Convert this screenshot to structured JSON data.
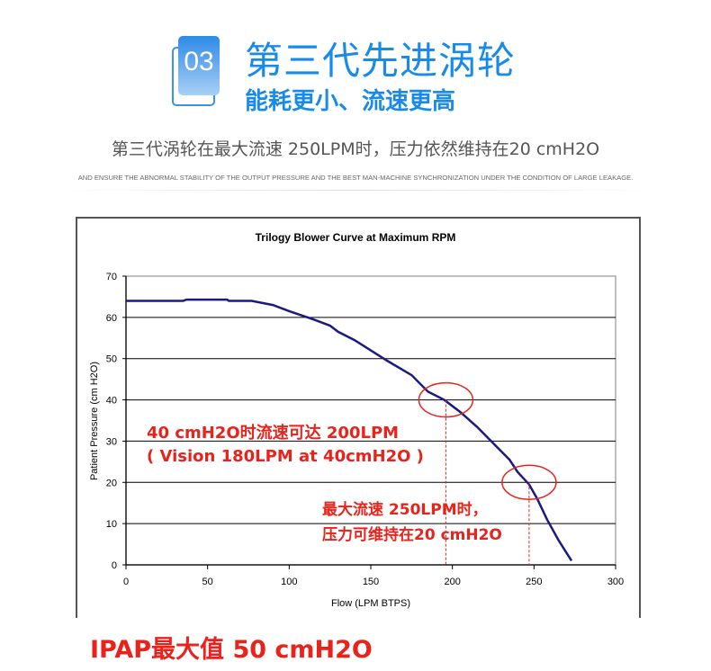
{
  "header": {
    "badge_number": "03",
    "title": "第三代先进涡轮",
    "subtitle": "能耗更小、流速更高",
    "description": "第三代涡轮在最大流速 250LPM时，压力依然维持在20 cmH2O",
    "english_caption": "AND ENSURE THE ABNORMAL STABILITY OF THE OUTPUT PRESSURE AND THE BEST MAN-MACHINE SYNCHRONIZATION UNDER THE CONDITION OF LARGE LEAKAGE."
  },
  "chart_data": {
    "type": "line",
    "title": "Trilogy Blower Curve at Maximum RPM",
    "xlabel": "Flow (LPM BTPS)",
    "ylabel": "Patient Pressure (cm H2O)",
    "xlim": [
      0,
      300
    ],
    "ylim": [
      0,
      70
    ],
    "xticks": [
      "0",
      "50",
      "100",
      "150",
      "200",
      "250",
      "300"
    ],
    "yticks": [
      "0",
      "10",
      "20",
      "30",
      "40",
      "50",
      "60",
      "70"
    ],
    "grid": "horizontal",
    "series": [
      {
        "name": "Blower curve",
        "color": "#1a1a80",
        "x": [
          0,
          35,
          37,
          62,
          63,
          77,
          90,
          100,
          115,
          125,
          130,
          140,
          150,
          160,
          175,
          185,
          195,
          205,
          215,
          225,
          235,
          240,
          247,
          252,
          258,
          265,
          273
        ],
        "y": [
          64,
          64,
          64.3,
          64.3,
          64,
          64,
          63,
          61.5,
          59.5,
          58,
          56.5,
          54.5,
          52,
          49.5,
          46,
          42,
          40,
          37,
          33.5,
          29.5,
          25.5,
          22.5,
          19.5,
          16,
          11,
          6,
          1
        ]
      }
    ],
    "annotations": [
      {
        "x": 196,
        "y": 40,
        "lines": [
          "40 cmH2O时流速可达 200LPM",
          "( Vision 180LPM at 40cmH2O )"
        ]
      },
      {
        "x": 247,
        "y": 20,
        "lines": [
          "最大流速 250LPM时，",
          "压力可维持在20 cmH2O"
        ]
      }
    ],
    "annotation_color": "#e8231c"
  },
  "footer": {
    "ipap_note": "IPAP最大值 50 cmH2O"
  }
}
